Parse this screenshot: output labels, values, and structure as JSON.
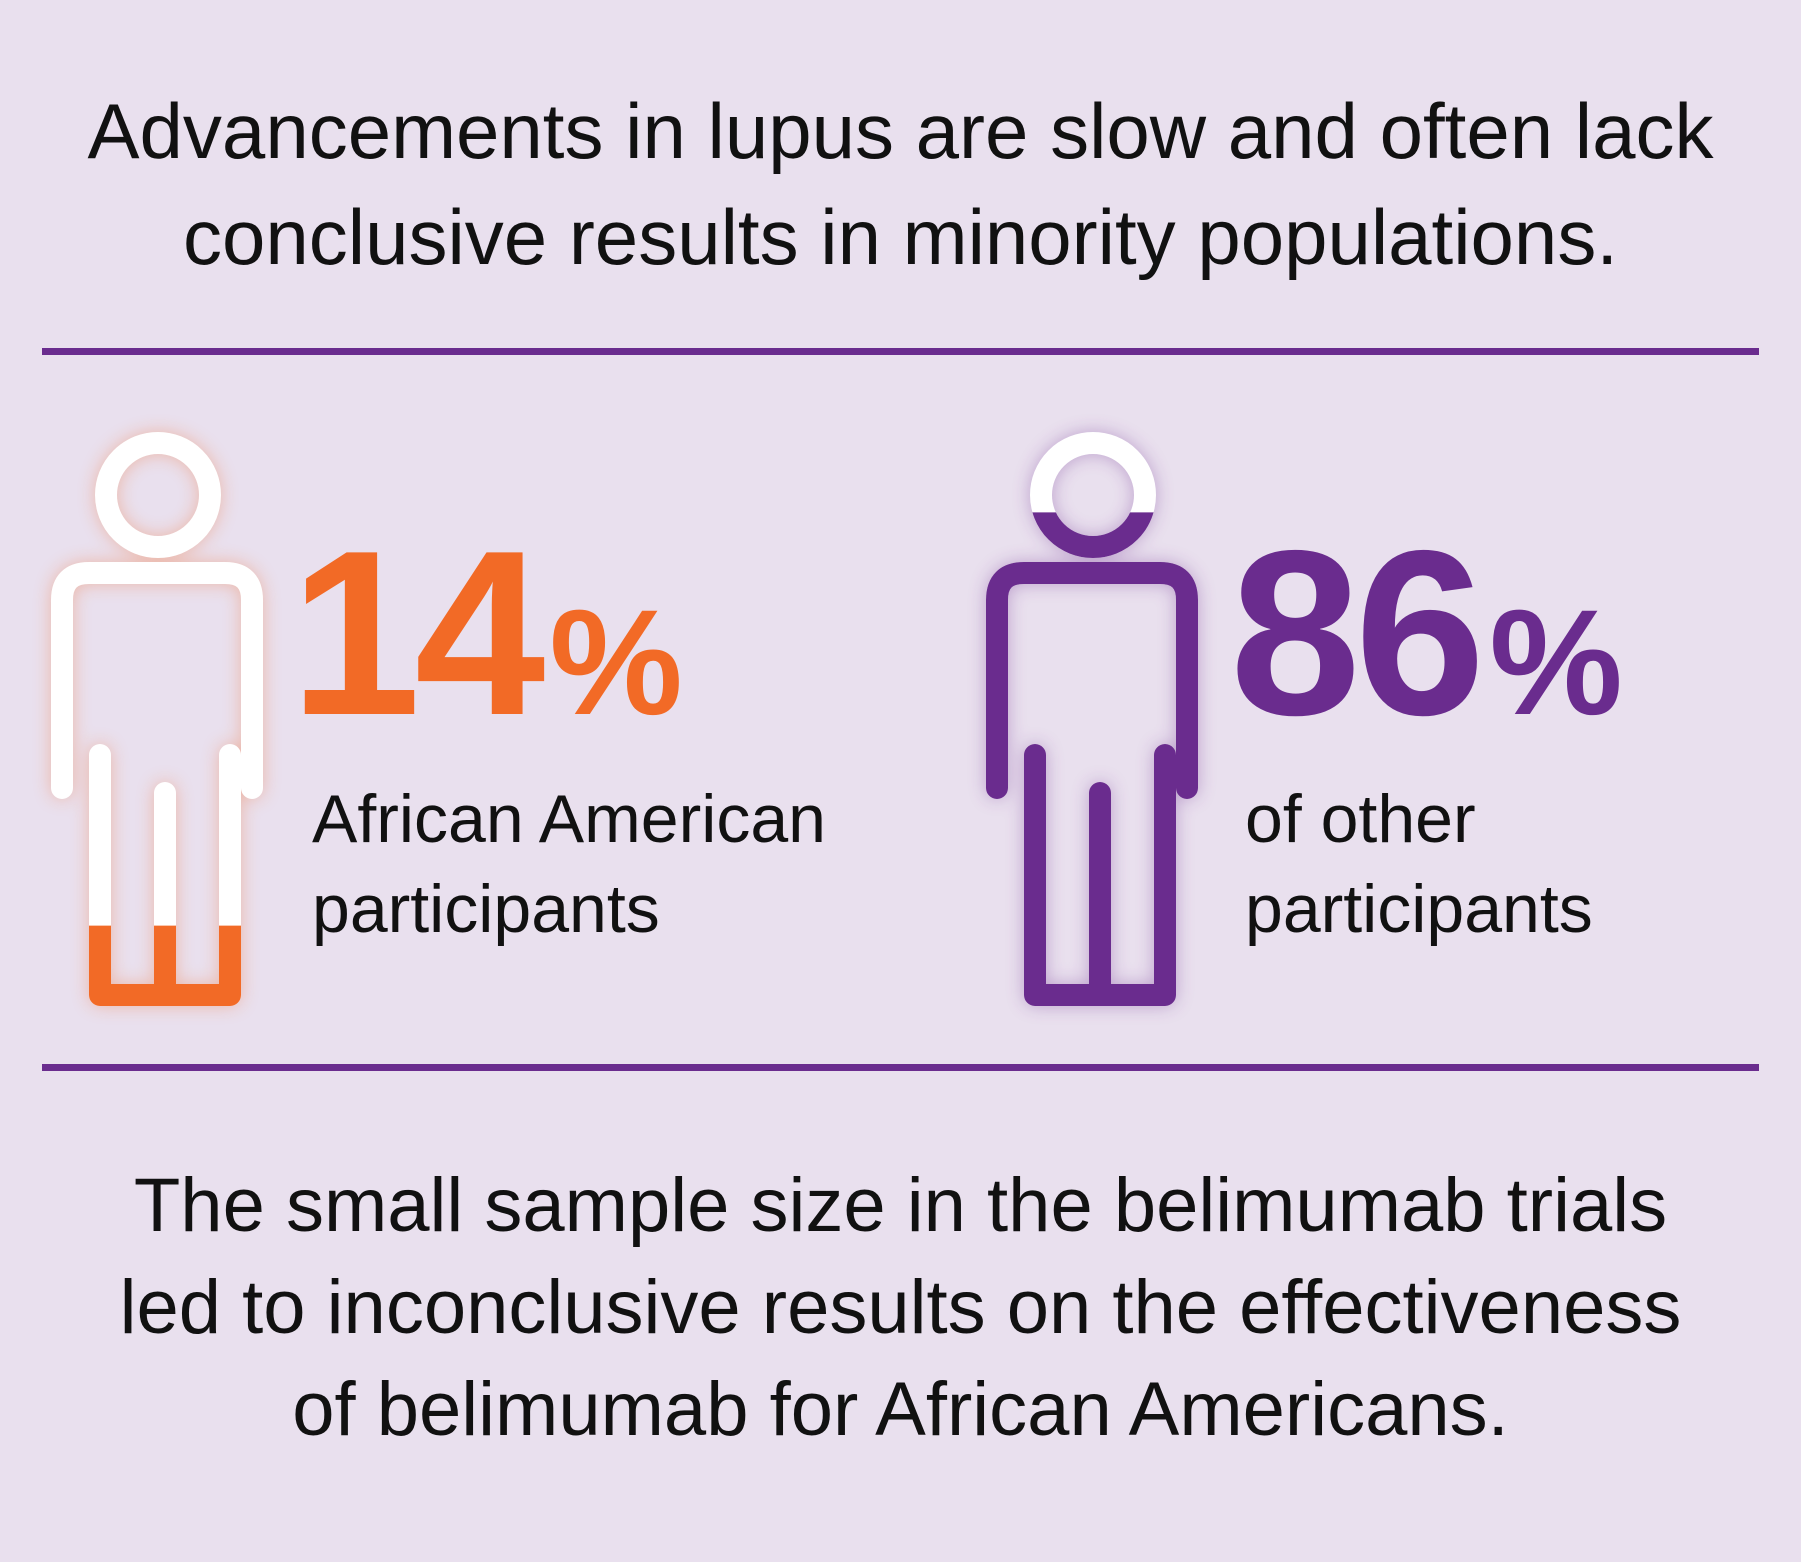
{
  "headline": {
    "line1": "Advancements in lupus are slow and often lack",
    "line2": "conclusive results in minority populations."
  },
  "colors": {
    "background": "#e9e0ee",
    "divider": "#6a2c8e",
    "orange": "#f26a26",
    "purple": "#6a2c8e",
    "white": "#ffffff"
  },
  "stats": [
    {
      "value": "14",
      "unit": "%",
      "label_line1": "African American",
      "label_line2": "participants",
      "color": "#f26a26",
      "icon": "person-outline-icon",
      "fill_fraction": 0.14
    },
    {
      "value": "86",
      "unit": "%",
      "label_line1": "of other",
      "label_line2": "participants",
      "color": "#6a2c8e",
      "icon": "person-outline-icon",
      "fill_fraction": 0.86
    }
  ],
  "footer": {
    "line1": "The small sample size in the belimumab trials",
    "line2": "led to inconclusive results on the effectiveness",
    "line3": "of belimumab for African Americans."
  }
}
